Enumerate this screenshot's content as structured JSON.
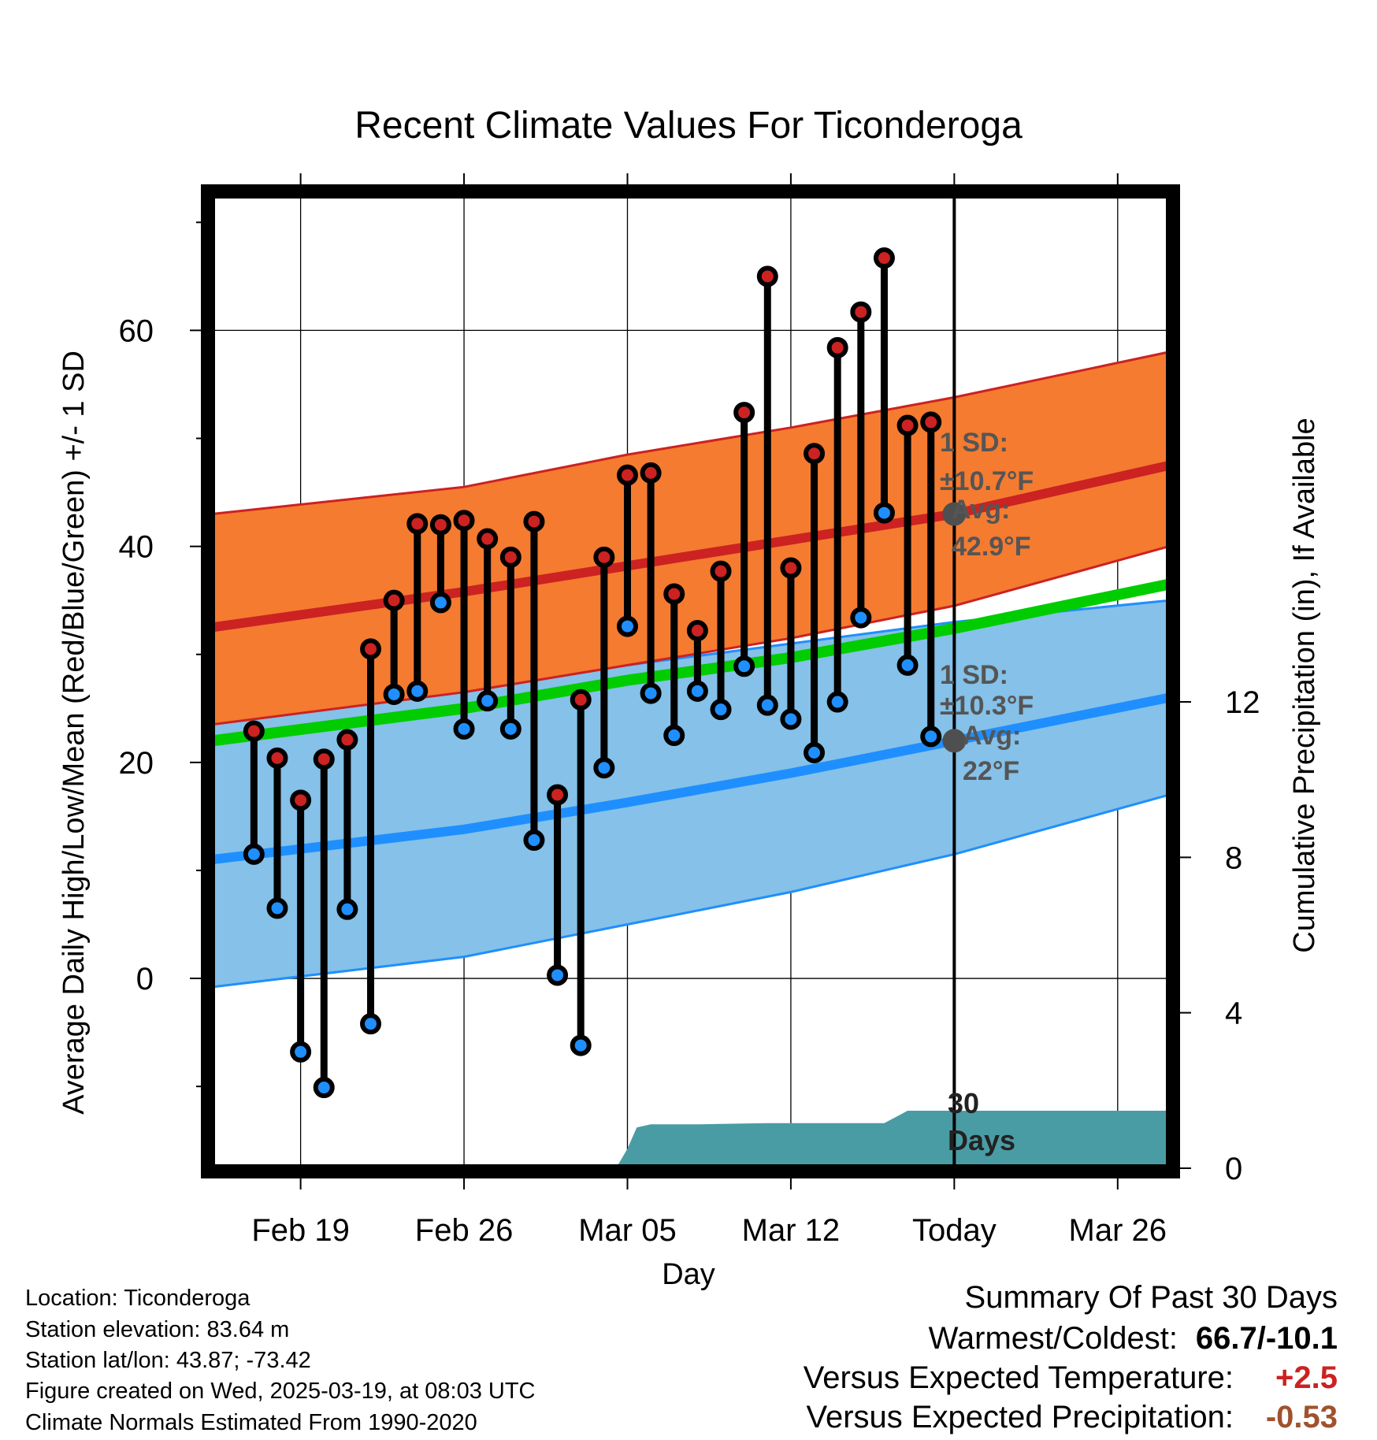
{
  "chart_data": {
    "type": "line",
    "title": "Recent Climate Values For Ticonderoga",
    "xlabel": "Day",
    "ylabel": "Average Daily High/Low/Mean (Red/Blue/Green) +/- 1 SD",
    "y2label": "Cumulative Precipitation (in), If Available",
    "ylim": [
      -17.5,
      72.5
    ],
    "y2lim": [
      0,
      12
    ],
    "yticks": [
      "0",
      "20",
      "40",
      "60"
    ],
    "y2ticks": [
      "0",
      "4",
      "8",
      "12"
    ],
    "xlim": [
      -3.8,
      37.2
    ],
    "xticks": [
      {
        "day": 0,
        "label": "Feb 19"
      },
      {
        "day": 7,
        "label": "Feb 26"
      },
      {
        "day": 14,
        "label": "Mar 05"
      },
      {
        "day": 21,
        "label": "Mar 12"
      },
      {
        "day": 28,
        "label": "Today"
      },
      {
        "day": 35,
        "label": "Mar 26"
      }
    ],
    "today_day": 28,
    "grid": true,
    "days": [
      -2,
      -1,
      0,
      1,
      2,
      3,
      4,
      5,
      6,
      7,
      8,
      9,
      10,
      11,
      12,
      13,
      14,
      15,
      16,
      17,
      18,
      19,
      20,
      21,
      22,
      23,
      24,
      25,
      26,
      27
    ],
    "daily_high": [
      22.9,
      20.4,
      16.5,
      20.3,
      22.1,
      30.5,
      35.0,
      42.1,
      42.0,
      42.4,
      40.7,
      39.0,
      42.3,
      17.0,
      25.8,
      39.0,
      46.6,
      46.8,
      35.6,
      32.2,
      37.7,
      52.4,
      65.0,
      38.0,
      48.6,
      58.4,
      61.7,
      66.7,
      51.2,
      51.5
    ],
    "daily_low": [
      11.5,
      6.5,
      -6.8,
      -10.1,
      6.4,
      -4.2,
      26.3,
      26.6,
      34.8,
      23.1,
      25.7,
      23.1,
      12.8,
      0.3,
      -6.2,
      19.5,
      32.6,
      26.4,
      22.5,
      26.6,
      24.9,
      28.9,
      25.3,
      24.0,
      20.9,
      25.6,
      33.4,
      43.1,
      29.0,
      22.4
    ],
    "normal_high": {
      "x": [
        -3.8,
        7,
        14,
        21,
        28,
        37.2
      ],
      "values": [
        32.5,
        35.8,
        38.2,
        40.6,
        43.0,
        47.5
      ]
    },
    "normal_high_sd_band": {
      "lower": [
        23.5,
        26.5,
        29.0,
        31.5,
        34.5,
        40.0
      ],
      "upper": [
        43.0,
        45.5,
        48.5,
        51.0,
        53.8,
        58.0
      ]
    },
    "normal_low": {
      "x": [
        -3.8,
        7,
        14,
        21,
        28,
        37.2
      ],
      "values": [
        11.0,
        13.8,
        16.3,
        19.0,
        22.0,
        26.0
      ]
    },
    "normal_low_sd_band": {
      "lower": [
        -0.8,
        2.0,
        5.0,
        8.0,
        11.5,
        17.0
      ],
      "upper": [
        24.0,
        26.8,
        29.0,
        31.0,
        33.0,
        35.0
      ]
    },
    "normal_mean": {
      "x": [
        -3.8,
        7,
        14,
        21,
        28,
        37.2
      ],
      "values": [
        22.0,
        25.0,
        27.6,
        29.7,
        32.4,
        36.5
      ]
    },
    "precip_cumulative": {
      "x": [
        -3.8,
        8.6,
        10.0,
        13.6,
        14.0,
        14.4,
        15.0,
        16.0,
        17.0,
        18.0,
        19.0,
        20.0,
        21.0,
        22.0,
        23.0,
        24.0,
        25.0,
        26.0,
        27.0,
        28.0,
        37.2
      ],
      "values": [
        0,
        0,
        0.05,
        0.09,
        0.5,
        1.05,
        1.13,
        1.13,
        1.13,
        1.14,
        1.15,
        1.16,
        1.16,
        1.16,
        1.16,
        1.16,
        1.16,
        1.48,
        1.48,
        1.48,
        1.48
      ]
    },
    "annotations": {
      "high_sd": "1 SD:",
      "high_sd_value": "±10.7°F",
      "high_avg": "Avg:",
      "high_avg_value": "42.9°F",
      "low_sd": "1 SD:",
      "low_sd_value": "±10.3°F",
      "low_avg": "Avg:",
      "low_avg_value": "22°F",
      "days_count": "30",
      "days_word": "Days"
    },
    "colors": {
      "high": "#cc2222",
      "low": "#1f8fff",
      "mean": "#00cc00",
      "high_band": "#f47b30",
      "low_band": "#85c1e8",
      "precip": "#4a9ca4",
      "annotation": "#555555"
    }
  },
  "footer": {
    "location": "Location: Ticonderoga",
    "elevation": "Station elevation: 83.64 m",
    "latlon": "Station lat/lon: 43.87; -73.42",
    "created": "Figure created on Wed, 2025-03-19, at 08:03 UTC",
    "normals": "Climate Normals Estimated From 1990-2020"
  },
  "summary": {
    "title": "Summary Of Past 30 Days",
    "warm_cold_label": "Warmest/Coldest:",
    "warm_cold_value": "66.7/-10.1",
    "temp_label": "Versus Expected Temperature:",
    "temp_value": "+2.5",
    "temp_color": "#cc2222",
    "precip_label": "Versus Expected Precipitation:",
    "precip_value": "-0.53",
    "precip_color": "#a0522d"
  }
}
